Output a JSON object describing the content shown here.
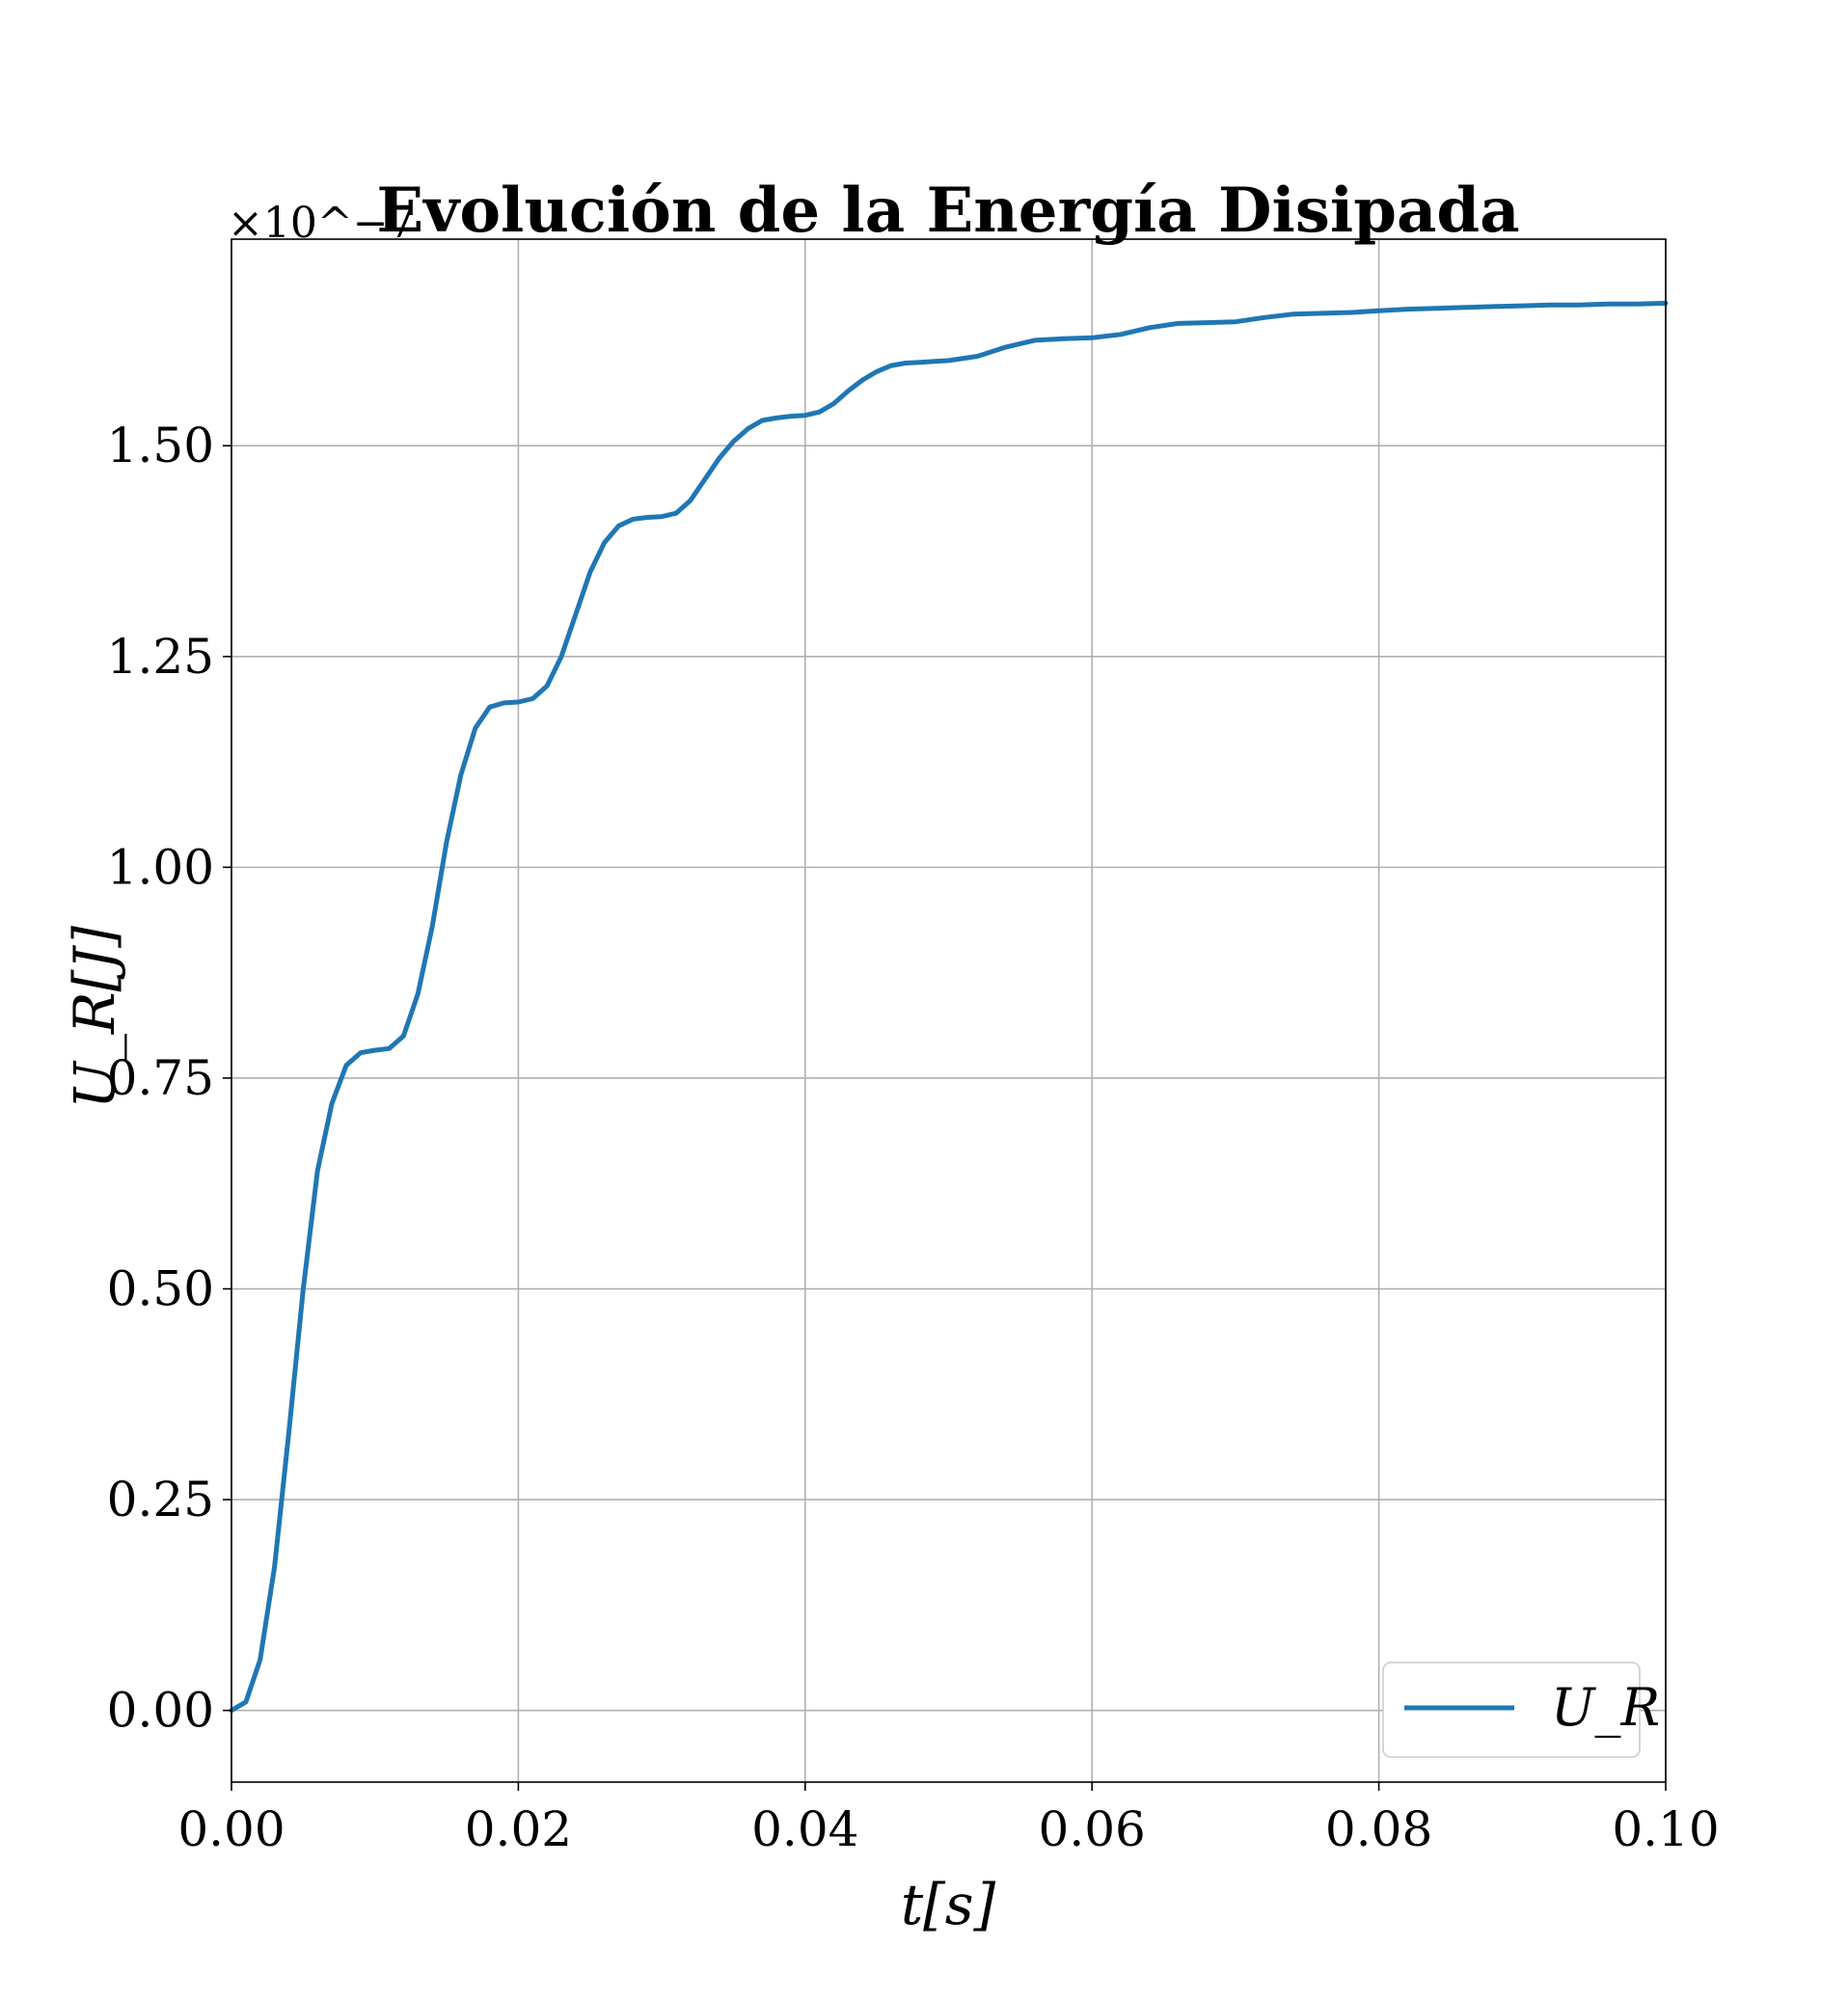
{
  "chart_data": {
    "type": "line",
    "title": "Evolución de la Energía Disipada",
    "xlabel": "t[s]",
    "ylabel": "U_R[J]",
    "y_multiplier": "×10^−7",
    "xlim": [
      0.0,
      0.1
    ],
    "ylim": [
      -0.085,
      1.745
    ],
    "xticks": [
      "0.00",
      "0.02",
      "0.04",
      "0.06",
      "0.08",
      "0.10"
    ],
    "xtick_values": [
      0.0,
      0.02,
      0.04,
      0.06,
      0.08,
      0.1
    ],
    "yticks": [
      "0.00",
      "0.25",
      "0.50",
      "0.75",
      "1.00",
      "1.25",
      "1.50"
    ],
    "ytick_values": [
      0.0,
      0.25,
      0.5,
      0.75,
      1.0,
      1.25,
      1.5
    ],
    "grid": true,
    "legend_position": "lower-right",
    "series": [
      {
        "name": "U_R",
        "color": "#1f77b4",
        "x": [
          0.0,
          0.001,
          0.002,
          0.003,
          0.004,
          0.005,
          0.006,
          0.007,
          0.008,
          0.009,
          0.01,
          0.011,
          0.012,
          0.013,
          0.014,
          0.015,
          0.016,
          0.017,
          0.018,
          0.019,
          0.02,
          0.021,
          0.022,
          0.023,
          0.024,
          0.025,
          0.026,
          0.027,
          0.028,
          0.029,
          0.03,
          0.031,
          0.032,
          0.033,
          0.034,
          0.035,
          0.036,
          0.037,
          0.038,
          0.039,
          0.04,
          0.041,
          0.042,
          0.043,
          0.044,
          0.045,
          0.046,
          0.047,
          0.048,
          0.049,
          0.05,
          0.052,
          0.054,
          0.056,
          0.058,
          0.06,
          0.062,
          0.064,
          0.066,
          0.068,
          0.07,
          0.072,
          0.074,
          0.076,
          0.078,
          0.08,
          0.082,
          0.084,
          0.086,
          0.088,
          0.09,
          0.092,
          0.094,
          0.096,
          0.098,
          0.1
        ],
        "y": [
          0.0,
          0.01,
          0.06,
          0.17,
          0.33,
          0.5,
          0.64,
          0.72,
          0.765,
          0.78,
          0.783,
          0.785,
          0.8,
          0.85,
          0.93,
          1.03,
          1.11,
          1.165,
          1.19,
          1.195,
          1.196,
          1.2,
          1.215,
          1.25,
          1.3,
          1.35,
          1.385,
          1.405,
          1.413,
          1.415,
          1.416,
          1.42,
          1.435,
          1.46,
          1.485,
          1.505,
          1.52,
          1.53,
          1.533,
          1.535,
          1.536,
          1.54,
          1.55,
          1.565,
          1.578,
          1.588,
          1.595,
          1.598,
          1.599,
          1.6,
          1.601,
          1.606,
          1.617,
          1.625,
          1.627,
          1.628,
          1.632,
          1.64,
          1.645,
          1.646,
          1.647,
          1.652,
          1.656,
          1.657,
          1.658,
          1.66,
          1.662,
          1.663,
          1.664,
          1.665,
          1.666,
          1.667,
          1.667,
          1.668,
          1.668,
          1.669
        ]
      }
    ]
  }
}
